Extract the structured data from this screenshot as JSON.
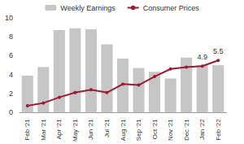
{
  "chart_data": {
    "type": "bar",
    "categories": [
      "Feb '21",
      "Mar '21",
      "Apr '21",
      "May '21",
      "Jun '21",
      "Jul '21",
      "Aug '21",
      "Sep '21",
      "Oct '21",
      "Nov '21",
      "Dec '21",
      "Jan '22",
      "Feb '22"
    ],
    "series": [
      {
        "name": "Weekly Earnings",
        "type": "bar",
        "color": "#c6c6c6",
        "values": [
          3.9,
          4.8,
          8.7,
          8.9,
          8.8,
          7.2,
          5.7,
          4.7,
          4.3,
          3.6,
          5.8,
          5.0,
          5.0
        ]
      },
      {
        "name": "Consumer Prices",
        "type": "line",
        "color": "#9e1b32",
        "marker": "circle",
        "values": [
          0.7,
          1.0,
          1.6,
          2.1,
          2.4,
          2.1,
          3.0,
          2.9,
          3.8,
          4.6,
          4.8,
          4.9,
          5.5
        ],
        "value_labels": [
          null,
          null,
          null,
          null,
          null,
          null,
          null,
          null,
          null,
          null,
          null,
          "4.9",
          "5.5"
        ]
      }
    ],
    "ylim": [
      0,
      10
    ],
    "yticks": [
      0,
      2,
      4,
      6,
      8,
      10
    ],
    "grid": false,
    "legend": "top"
  }
}
